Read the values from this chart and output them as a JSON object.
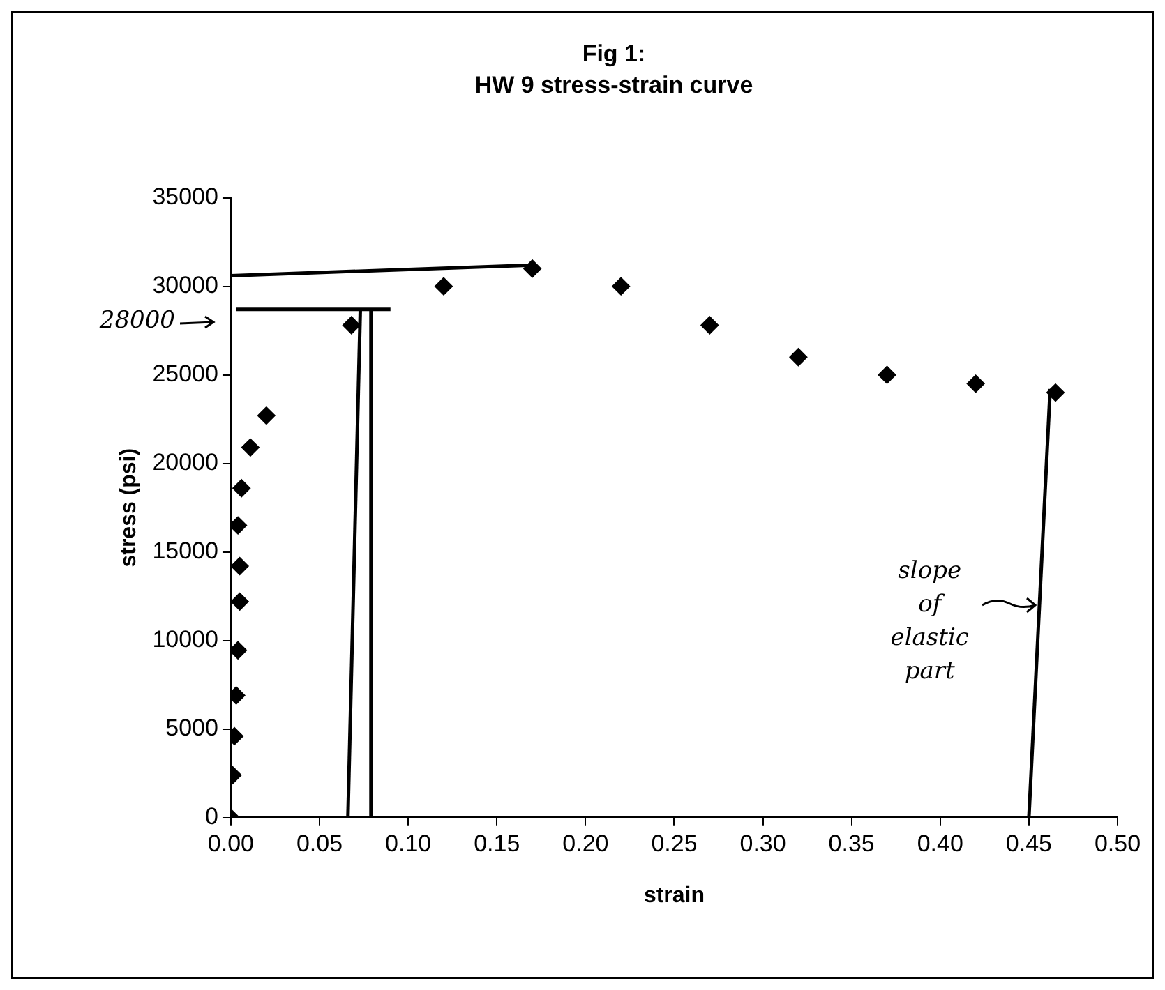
{
  "chart_data": {
    "type": "scatter",
    "title": "Fig 1:",
    "subtitle": "HW 9 stress-strain curve",
    "xlabel": "strain",
    "ylabel": "stress (psi)",
    "xlim": [
      0,
      0.5
    ],
    "xticks": [
      {
        "value": 0,
        "label": "0.00"
      },
      {
        "value": 0.05,
        "label": "0.05"
      },
      {
        "value": 0.1,
        "label": "0.10"
      },
      {
        "value": 0.15,
        "label": "0.15"
      },
      {
        "value": 0.2,
        "label": "0.20"
      },
      {
        "value": 0.25,
        "label": "0.25"
      },
      {
        "value": 0.3,
        "label": "0.30"
      },
      {
        "value": 0.35,
        "label": "0.35"
      },
      {
        "value": 0.4,
        "label": "0.40"
      },
      {
        "value": 0.45,
        "label": "0.45"
      },
      {
        "value": 0.5,
        "label": "0.50"
      }
    ],
    "ylim": [
      0,
      35000
    ],
    "yticks": [
      0,
      5000,
      10000,
      15000,
      20000,
      25000,
      30000,
      35000
    ],
    "grid": false,
    "legend": false,
    "marker": "diamond",
    "series": [
      {
        "color": "#000000",
        "x": [
          0,
          0.001,
          0.002,
          0.003,
          0.004,
          0.005,
          0.005,
          0.004,
          0.006,
          0.011,
          0.02,
          0.068,
          0.12,
          0.17,
          0.22,
          0.27,
          0.32,
          0.37,
          0.42,
          0.465
        ],
        "values": [
          0,
          2400,
          4600,
          6900,
          9450,
          12200,
          14200,
          16500,
          18600,
          20900,
          22700,
          27800,
          30000,
          31000,
          30000,
          27800,
          26000,
          25000,
          24500,
          24000
        ]
      },
      {
        "type": "line",
        "marker": "none",
        "color": "#000000",
        "x": [
          0,
          0.17
        ],
        "values": [
          30600,
          31200
        ]
      },
      {
        "type": "line",
        "marker": "none",
        "color": "#000000",
        "x": [
          0.003,
          0.09
        ],
        "values": [
          28700,
          28700
        ]
      },
      {
        "type": "line",
        "marker": "none",
        "color": "#000000",
        "x": [
          0.066,
          0.073
        ],
        "values": [
          0,
          28700
        ]
      },
      {
        "type": "line",
        "marker": "none",
        "color": "#000000",
        "x": [
          0.079,
          0.079
        ],
        "values": [
          0,
          28700
        ]
      },
      {
        "type": "line",
        "marker": "none",
        "color": "#000000",
        "x": [
          0.45,
          0.462
        ],
        "values": [
          0,
          24200
        ]
      }
    ],
    "annotations": [
      "28000",
      {
        "text": "slope of elastic part",
        "x": 0.457,
        "y": 12000
      }
    ]
  }
}
